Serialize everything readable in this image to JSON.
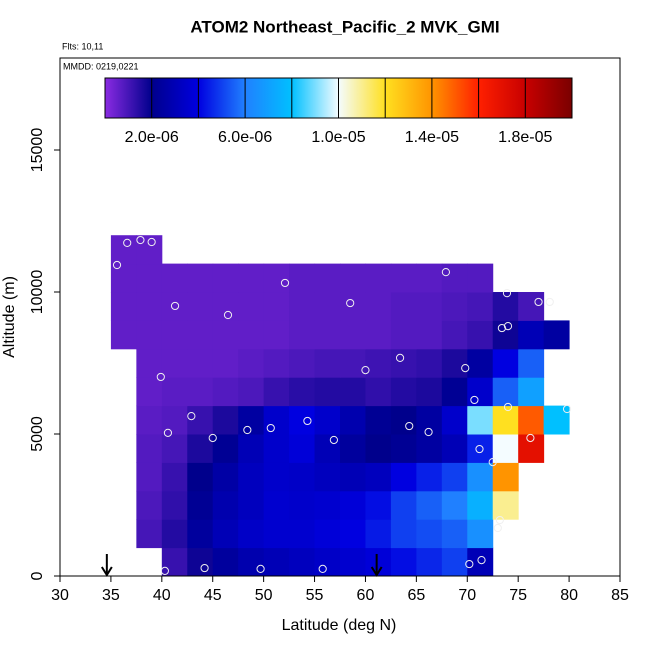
{
  "chart_data": {
    "type": "heatmap",
    "title": "ATOM2 Northeast_Pacific_2 MVK_GMI",
    "flights": "Flts: 10,11",
    "dates": "MMDD: 0219,0221",
    "xlabel": "Latitude (deg N)",
    "ylabel": "Altitude (m)",
    "xlim": [
      30,
      85
    ],
    "ylim": [
      0,
      18240
    ],
    "xticks": [
      30,
      35,
      40,
      45,
      50,
      55,
      60,
      65,
      70,
      75,
      80,
      85
    ],
    "yticks": [
      0,
      5000,
      10000,
      15000
    ],
    "lat_edges": [
      35,
      37.5,
      40,
      42.5,
      45,
      47.5,
      50,
      52.5,
      55,
      57.5,
      60,
      62.5,
      65,
      67.5,
      70,
      72.5,
      75,
      77.5,
      80
    ],
    "alt_edges": [
      0,
      1000,
      2000,
      3000,
      4000,
      5000,
      6000,
      7000,
      8000,
      9000,
      10000,
      11000,
      12000
    ],
    "z": [
      [
        null,
        null,
        1.2e-06,
        1.8e-06,
        2.4e-06,
        2.8e-06,
        3e-06,
        3.2e-06,
        3.4e-06,
        3.6e-06,
        3.8e-06,
        4.2e-06,
        4.6e-06,
        5e-06,
        3e-06,
        null,
        null,
        null
      ],
      [
        null,
        1e-06,
        1.5e-06,
        2.4e-06,
        3e-06,
        3.4e-06,
        3.6e-06,
        3.6e-06,
        3.8e-06,
        4e-06,
        4.4e-06,
        5e-06,
        5.2e-06,
        5.5e-06,
        6.5e-06,
        null,
        null,
        null
      ],
      [
        null,
        9e-07,
        1.3e-06,
        2.2e-06,
        2.8e-06,
        3.2e-06,
        3.6e-06,
        3.5e-06,
        3.6e-06,
        3.8e-06,
        4.2e-06,
        5e-06,
        5.5e-06,
        6e-06,
        7.5e-06,
        1.1e-05,
        null,
        null
      ],
      [
        null,
        8e-07,
        1.2e-06,
        2e-06,
        2.6e-06,
        3.2e-06,
        3.5e-06,
        3.4e-06,
        3.2e-06,
        3e-06,
        3.2e-06,
        4e-06,
        4.5e-06,
        5e-06,
        6.5e-06,
        1.4e-05,
        null,
        null
      ],
      [
        null,
        8e-07,
        1e-06,
        1.6e-06,
        2.2e-06,
        3e-06,
        3.5e-06,
        3.8e-06,
        3e-06,
        2.4e-06,
        2e-06,
        2.2e-06,
        2.5e-06,
        3e-06,
        4.5e-06,
        1e-05,
        1.7e-05,
        null
      ],
      [
        null,
        7e-07,
        8e-07,
        1.2e-06,
        1.6e-06,
        2.5e-06,
        3.5e-06,
        4e-06,
        3.5e-06,
        2.8e-06,
        2.2e-06,
        2e-06,
        2.5e-06,
        3.5e-06,
        9e-06,
        1.2e-05,
        1.5e-05,
        8e-06
      ],
      [
        null,
        6e-07,
        7e-07,
        7e-07,
        8e-07,
        9e-07,
        1.2e-06,
        1.4e-06,
        1.5e-06,
        1.5e-06,
        1.3e-06,
        1.5e-06,
        1.6e-06,
        2.2e-06,
        3.5e-06,
        5.5e-06,
        7e-06,
        null
      ],
      [
        null,
        6e-07,
        6e-07,
        6e-07,
        6e-07,
        7e-07,
        8e-07,
        9e-07,
        1e-06,
        1e-06,
        1.1e-06,
        1.2e-06,
        1.3e-06,
        1.6e-06,
        2.5e-06,
        4e-06,
        5.5e-06,
        null
      ],
      [
        6e-07,
        6e-07,
        6e-07,
        6e-07,
        6e-07,
        6e-07,
        6e-07,
        7e-07,
        7e-07,
        7e-07,
        7e-07,
        8e-07,
        8e-07,
        1e-06,
        1.2e-06,
        1.8e-06,
        3e-06,
        2.5e-06
      ],
      [
        6e-07,
        6e-07,
        6e-07,
        6e-07,
        6e-07,
        6e-07,
        6e-07,
        7e-07,
        7e-07,
        7e-07,
        7e-07,
        8e-07,
        8e-07,
        9e-07,
        1e-06,
        1.5e-06,
        1e-06,
        null
      ],
      [
        6e-07,
        6e-07,
        6e-07,
        6e-07,
        6e-07,
        6e-07,
        6e-07,
        7e-07,
        7e-07,
        7e-07,
        7e-07,
        7e-07,
        7e-07,
        8e-07,
        8e-07,
        null,
        null,
        null
      ],
      [
        6e-07,
        6e-07,
        null,
        null,
        null,
        null,
        null,
        null,
        null,
        null,
        null,
        null,
        null,
        null,
        null,
        null,
        null,
        null
      ]
    ],
    "zlim": [
      0,
      2e-05
    ],
    "colorscale": [
      "#8a2be2",
      "#00008c",
      "#0000e0",
      "#2080ff",
      "#00c0ff",
      "#f4fcff",
      "#ffe020",
      "#ff9400",
      "#ff2000",
      "#c80000",
      "#7a0000"
    ],
    "zticks": [
      {
        "value": 2e-06,
        "label": "2.0e-06"
      },
      {
        "value": 6e-06,
        "label": "6.0e-06"
      },
      {
        "value": 1e-05,
        "label": "1.0e-05"
      },
      {
        "value": 1.4e-05,
        "label": "1.4e-05"
      },
      {
        "value": 1.8e-05,
        "label": "1.8e-05"
      }
    ],
    "points": {
      "x": [
        36.6,
        37.9,
        39.0,
        35.6,
        41.3,
        46.5,
        52.1,
        58.5,
        67.9,
        73.9,
        77.0,
        78.1,
        74.0,
        73.4,
        39.9,
        60.0,
        63.4,
        69.8,
        70.7,
        74.0,
        79.8,
        42.9,
        54.3,
        40.6,
        45.0,
        48.4,
        50.7,
        56.9,
        64.3,
        66.2,
        76.2,
        71.2,
        72.5,
        73.2,
        73.0,
        71.4,
        70.2,
        55.8,
        49.7,
        44.2,
        40.3
      ],
      "y": [
        11730,
        11830,
        11760,
        10950,
        9510,
        9190,
        10320,
        9610,
        10700,
        9960,
        9650,
        9650,
        8800,
        8730,
        7010,
        7250,
        7680,
        7320,
        6200,
        5950,
        5880,
        5630,
        5460,
        5040,
        4860,
        5140,
        5210,
        4790,
        5280,
        5070,
        4860,
        4470,
        4010,
        1970,
        1690,
        560,
        420,
        250,
        250,
        280,
        180
      ]
    },
    "arrows": [
      34.6,
      61.1
    ]
  }
}
